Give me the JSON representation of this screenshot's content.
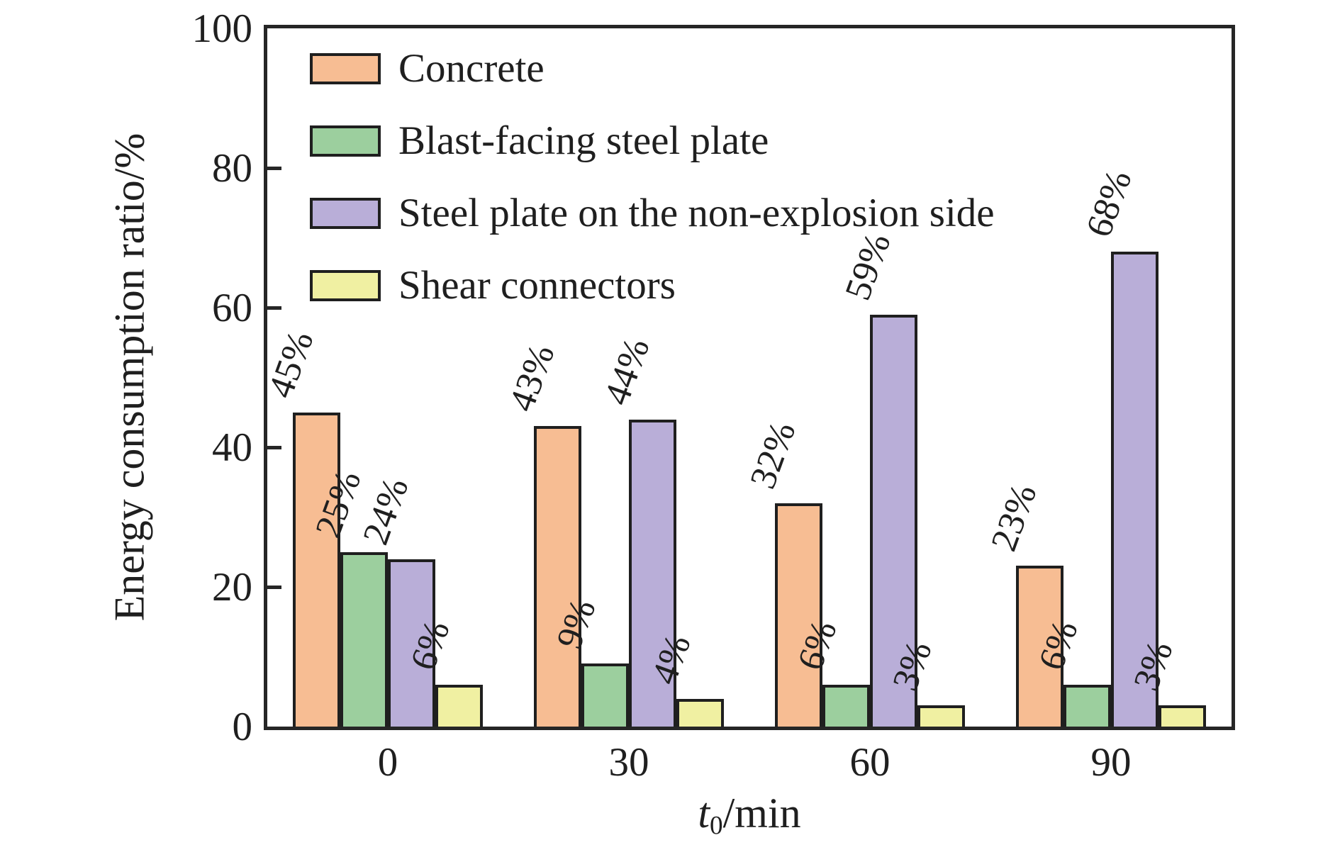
{
  "figure": {
    "background": "#ffffff",
    "axis_color": "#262626",
    "text_color": "#1f1f1f"
  },
  "chart_data": {
    "type": "bar",
    "title": "",
    "ylabel": "Energy consumption ratio/%",
    "xlabel": {
      "variable": "t",
      "subscript": "0",
      "rest": "/min"
    },
    "categories": [
      "0",
      "30",
      "60",
      "90"
    ],
    "ylim": [
      0,
      100
    ],
    "yticks": [
      0,
      20,
      40,
      60,
      80,
      100
    ],
    "grid": false,
    "legend_position": "top-left-inside",
    "bar_label_rotation_deg": -70,
    "series": [
      {
        "name": "Concrete",
        "color": "#F7BD93",
        "values": [
          45,
          43,
          32,
          23
        ],
        "labels": [
          "45%",
          "43%",
          "32%",
          "23%"
        ]
      },
      {
        "name": "Blast-facing steel plate",
        "color": "#9CCF9E",
        "values": [
          25,
          9,
          6,
          6
        ],
        "labels": [
          "25%",
          "9%",
          "6%",
          "6%"
        ]
      },
      {
        "name": "Steel plate on the non-explosion side",
        "color": "#B9AED8",
        "values": [
          24,
          44,
          59,
          68
        ],
        "labels": [
          "24%",
          "44%",
          "59%",
          "68%"
        ]
      },
      {
        "name": "Shear connectors",
        "color": "#F0F0A2",
        "values": [
          6,
          4,
          3,
          3
        ],
        "labels": [
          "6%",
          "4%",
          "3%",
          "3%"
        ]
      }
    ]
  }
}
